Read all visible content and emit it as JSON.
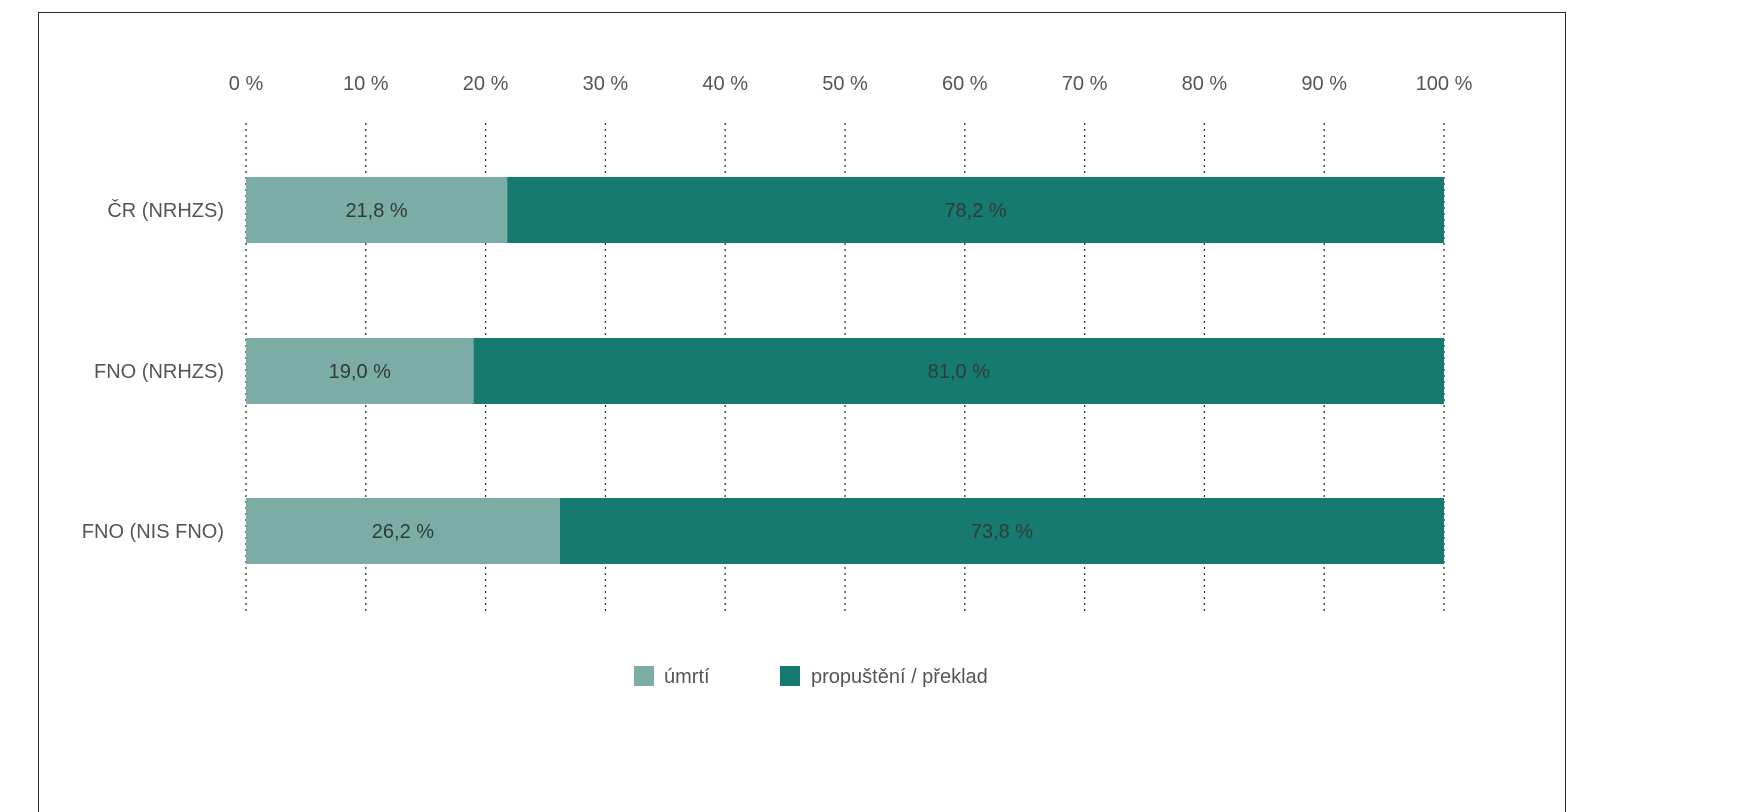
{
  "chart_data": {
    "type": "bar",
    "orientation": "horizontal",
    "stacked": true,
    "categories": [
      "ČR (NRHZS)",
      "FNO (NRHZS)",
      "FNO (NIS FNO)"
    ],
    "series": [
      {
        "name": "úmrtí",
        "values": [
          21.8,
          19.0,
          26.2
        ],
        "labels": [
          "21,8 %",
          "19,0 %",
          "26,2 %"
        ],
        "color": "#7bada6"
      },
      {
        "name": "propuštění / překlad",
        "values": [
          78.2,
          81.0,
          73.8
        ],
        "labels": [
          "78,2 %",
          "81,0 %",
          "73,8 %"
        ],
        "color": "#177a70"
      }
    ],
    "xlim": [
      0,
      100
    ],
    "x_ticks": [
      0,
      10,
      20,
      30,
      40,
      50,
      60,
      70,
      80,
      90,
      100
    ],
    "x_tick_labels": [
      "0 %",
      "10 %",
      "20 %",
      "30 %",
      "40 %",
      "50 %",
      "60 %",
      "70 %",
      "80 %",
      "90 %",
      "100 %"
    ],
    "x_axis_position": "top",
    "grid": "vertical-dotted",
    "legend_position": "bottom-center",
    "title": "",
    "xlabel": "",
    "ylabel": ""
  }
}
